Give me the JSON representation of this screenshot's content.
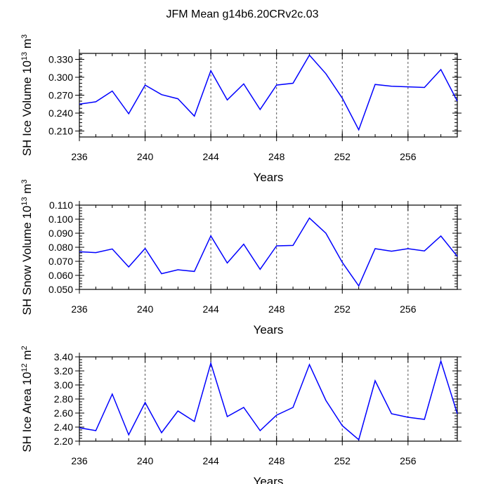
{
  "title": "JFM Mean g14b6.20CRv2c.03",
  "line_color": "#0000ff",
  "chart_data": [
    {
      "type": "line",
      "xlabel": "Years",
      "ylabel_main": "SH Ice Volume 10",
      "ylabel_exp": "13",
      "ylabel_unit": " m",
      "ylabel_unit_exp": "3",
      "x": [
        236,
        237,
        238,
        239,
        240,
        241,
        242,
        243,
        244,
        245,
        246,
        247,
        248,
        249,
        250,
        251,
        252,
        253,
        254,
        255,
        256,
        257,
        258,
        259
      ],
      "y": [
        0.255,
        0.259,
        0.277,
        0.239,
        0.287,
        0.271,
        0.264,
        0.235,
        0.311,
        0.262,
        0.289,
        0.246,
        0.287,
        0.29,
        0.337,
        0.306,
        0.265,
        0.212,
        0.288,
        0.285,
        0.284,
        0.283,
        0.313,
        0.26
      ],
      "xlim": [
        236,
        259
      ],
      "ylim": [
        0.2,
        0.34
      ],
      "xticks": [
        236,
        240,
        244,
        248,
        252,
        256
      ],
      "xtick_labels": [
        "236",
        "240",
        "244",
        "248",
        "252",
        "256"
      ],
      "yticks": [
        0.21,
        0.24,
        0.27,
        0.3,
        0.33
      ],
      "ytick_labels": [
        "0.210",
        "0.240",
        "0.270",
        "0.300",
        "0.330"
      ],
      "yminor_step": 0.006,
      "vgrid": [
        240,
        244,
        248,
        252,
        256
      ]
    },
    {
      "type": "line",
      "xlabel": "Years",
      "ylabel_main": "SH Snow Volume 10",
      "ylabel_exp": "13",
      "ylabel_unit": " m",
      "ylabel_unit_exp": "3",
      "x": [
        236,
        237,
        238,
        239,
        240,
        241,
        242,
        243,
        244,
        245,
        246,
        247,
        248,
        249,
        250,
        251,
        252,
        253,
        254,
        255,
        256,
        257,
        258,
        259
      ],
      "y": [
        0.0768,
        0.0762,
        0.0788,
        0.066,
        0.0792,
        0.0612,
        0.064,
        0.0628,
        0.0881,
        0.0688,
        0.0822,
        0.0643,
        0.081,
        0.0813,
        0.1008,
        0.09,
        0.0692,
        0.0525,
        0.079,
        0.0772,
        0.079,
        0.0774,
        0.088,
        0.0735
      ],
      "xlim": [
        236,
        259
      ],
      "ylim": [
        0.05,
        0.11
      ],
      "xticks": [
        236,
        240,
        244,
        248,
        252,
        256
      ],
      "xtick_labels": [
        "236",
        "240",
        "244",
        "248",
        "252",
        "256"
      ],
      "yticks": [
        0.05,
        0.06,
        0.07,
        0.08,
        0.09,
        0.1,
        0.11
      ],
      "ytick_labels": [
        "0.050",
        "0.060",
        "0.070",
        "0.080",
        "0.090",
        "0.100",
        "0.110"
      ],
      "yminor_step": 0.002,
      "vgrid": [
        240,
        244,
        248,
        252,
        256
      ]
    },
    {
      "type": "line",
      "xlabel": "Years",
      "ylabel_main": "SH Ice Area 10",
      "ylabel_exp": "12",
      "ylabel_unit": " m",
      "ylabel_unit_exp": "2",
      "x": [
        236,
        237,
        238,
        239,
        240,
        241,
        242,
        243,
        244,
        245,
        246,
        247,
        248,
        249,
        250,
        251,
        252,
        253,
        254,
        255,
        256,
        257,
        258,
        259
      ],
      "y": [
        2.39,
        2.35,
        2.87,
        2.29,
        2.75,
        2.32,
        2.63,
        2.48,
        3.31,
        2.55,
        2.68,
        2.35,
        2.57,
        2.68,
        3.29,
        2.78,
        2.42,
        2.22,
        3.06,
        2.59,
        2.54,
        2.51,
        3.34,
        2.59
      ],
      "xlim": [
        236,
        259
      ],
      "ylim": [
        2.2,
        3.4
      ],
      "xticks": [
        236,
        240,
        244,
        248,
        252,
        256
      ],
      "xtick_labels": [
        "236",
        "240",
        "244",
        "248",
        "252",
        "256"
      ],
      "yticks": [
        2.2,
        2.4,
        2.6,
        2.8,
        3.0,
        3.2,
        3.4
      ],
      "ytick_labels": [
        "2.20",
        "2.40",
        "2.60",
        "2.80",
        "3.00",
        "3.20",
        "3.40"
      ],
      "yminor_step": 0.04,
      "vgrid": [
        240,
        244,
        248,
        252,
        256
      ]
    }
  ]
}
